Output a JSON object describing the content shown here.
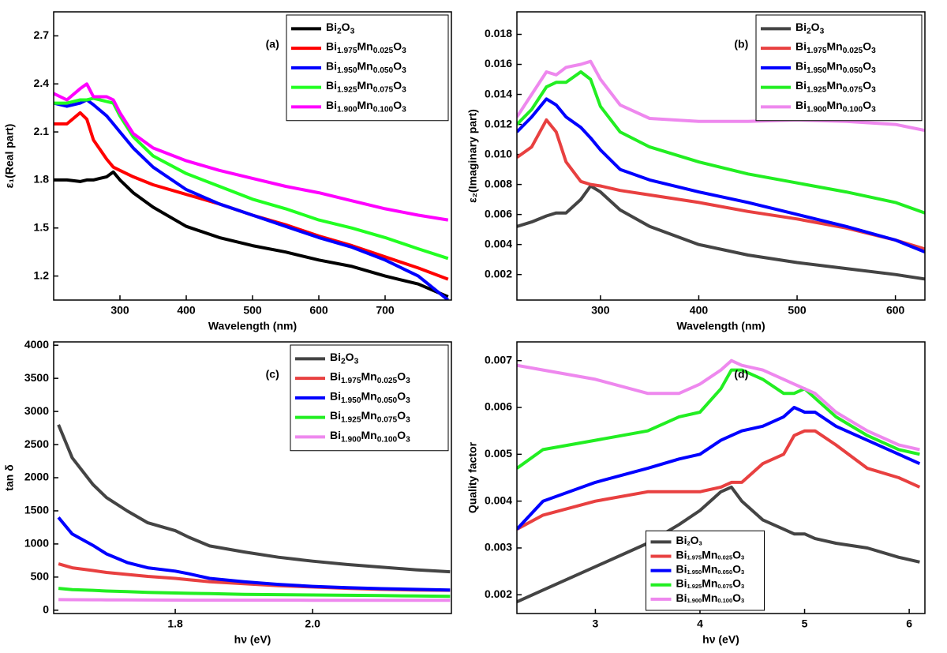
{
  "chart_data": [
    {
      "type": "line",
      "panel_label": "(a)",
      "x_label": "Wavelength (nm)",
      "y_label": "ε₁(Real part)",
      "x": [
        200,
        220,
        240,
        250,
        260,
        280,
        290,
        300,
        320,
        350,
        400,
        450,
        500,
        550,
        600,
        650,
        700,
        750,
        795
      ],
      "xlim": [
        200,
        800
      ],
      "xticks": [
        300,
        400,
        500,
        600,
        700
      ],
      "ylim": [
        1.05,
        2.85
      ],
      "yticks": [
        1.2,
        1.5,
        1.8,
        2.1,
        2.4,
        2.7
      ],
      "legend": "upper right",
      "series": [
        {
          "name": "Bi2O3",
          "color": "#000000",
          "values": [
            1.8,
            1.8,
            1.79,
            1.8,
            1.8,
            1.82,
            1.85,
            1.8,
            1.72,
            1.63,
            1.51,
            1.44,
            1.39,
            1.35,
            1.3,
            1.26,
            1.2,
            1.15,
            1.07
          ]
        },
        {
          "name": "Bi1.975Mn0.025O3",
          "color": "#ff0000",
          "values": [
            2.15,
            2.15,
            2.22,
            2.18,
            2.05,
            1.93,
            1.88,
            1.86,
            1.82,
            1.77,
            1.71,
            1.65,
            1.58,
            1.52,
            1.45,
            1.39,
            1.32,
            1.25,
            1.18
          ]
        },
        {
          "name": "Bi1.950Mn0.050O3",
          "color": "#0000ff",
          "values": [
            2.28,
            2.26,
            2.28,
            2.3,
            2.27,
            2.2,
            2.15,
            2.1,
            2.0,
            1.88,
            1.74,
            1.65,
            1.58,
            1.51,
            1.44,
            1.38,
            1.3,
            1.2,
            1.05
          ]
        },
        {
          "name": "Bi1.925Mn0.075O3",
          "color": "#22ff22",
          "values": [
            2.28,
            2.28,
            2.3,
            2.3,
            2.31,
            2.29,
            2.28,
            2.2,
            2.07,
            1.95,
            1.84,
            1.76,
            1.68,
            1.62,
            1.55,
            1.5,
            1.44,
            1.37,
            1.31
          ]
        },
        {
          "name": "Bi1.900Mn0.100O3",
          "color": "#ff00ff",
          "values": [
            2.34,
            2.3,
            2.37,
            2.4,
            2.32,
            2.32,
            2.3,
            2.22,
            2.09,
            2.0,
            1.92,
            1.86,
            1.81,
            1.76,
            1.72,
            1.67,
            1.62,
            1.58,
            1.55
          ]
        }
      ]
    },
    {
      "type": "line",
      "panel_label": "(b)",
      "x_label": "Wavelength (nm)",
      "y_label": "ε₂(Imaginary part)",
      "x": [
        215,
        230,
        245,
        255,
        265,
        280,
        290,
        300,
        320,
        350,
        400,
        450,
        500,
        550,
        600,
        630
      ],
      "xlim": [
        215,
        630
      ],
      "xticks": [
        300,
        400,
        500,
        600
      ],
      "ylim": [
        0.0003,
        0.0195
      ],
      "yticks": [
        0.002,
        0.004,
        0.006,
        0.008,
        {
          "value": 0.01,
          "label": "0.010"
        },
        0.012,
        0.014,
        0.016,
        0.018
      ],
      "legend": "upper right",
      "series": [
        {
          "name": "Bi2O3",
          "color": "#444444",
          "values": [
            0.0052,
            0.0055,
            0.0059,
            0.0061,
            0.0061,
            0.007,
            0.0079,
            0.0075,
            0.0063,
            0.0052,
            0.004,
            0.0033,
            0.0028,
            0.0024,
            0.002,
            0.0017
          ]
        },
        {
          "name": "Bi1.975Mn0.025O3",
          "color": "#e84040",
          "values": [
            0.0098,
            0.0105,
            0.0123,
            0.0115,
            0.0095,
            0.0082,
            0.008,
            0.0079,
            0.0076,
            0.0073,
            0.0068,
            0.0062,
            0.0057,
            0.0051,
            0.0043,
            0.0037
          ]
        },
        {
          "name": "Bi1.950Mn0.050O3",
          "color": "#0000ff",
          "values": [
            0.0115,
            0.0125,
            0.0137,
            0.0133,
            0.0125,
            0.0118,
            0.0111,
            0.0103,
            0.009,
            0.0083,
            0.0075,
            0.0068,
            0.006,
            0.0052,
            0.0043,
            0.0035
          ]
        },
        {
          "name": "Bi1.925Mn0.075O3",
          "color": "#22ee22",
          "values": [
            0.012,
            0.013,
            0.0145,
            0.0148,
            0.0148,
            0.0155,
            0.015,
            0.0132,
            0.0115,
            0.0105,
            0.0095,
            0.0087,
            0.0081,
            0.0075,
            0.0068,
            0.0061
          ]
        },
        {
          "name": "Bi1.900Mn0.100O3",
          "color": "#ee88ee",
          "values": [
            0.0125,
            0.014,
            0.0155,
            0.0153,
            0.0158,
            0.016,
            0.0162,
            0.015,
            0.0133,
            0.0124,
            0.0122,
            0.0122,
            0.0123,
            0.0122,
            0.012,
            0.0116
          ]
        }
      ]
    },
    {
      "type": "line",
      "panel_label": "(c)",
      "x_label": "hν (eV)",
      "y_label": "tan δ",
      "x": [
        1.63,
        1.65,
        1.68,
        1.7,
        1.73,
        1.76,
        1.8,
        1.82,
        1.85,
        1.9,
        1.95,
        2.0,
        2.05,
        2.1,
        2.15,
        2.2
      ],
      "xlim": [
        1.623,
        2.202
      ],
      "xticks": [
        1.8,
        {
          "value": 2,
          "label": "2.0"
        }
      ],
      "ylim": [
        -50,
        4050
      ],
      "yticks": [
        0,
        500,
        1000,
        1500,
        2000,
        2500,
        3000,
        3500,
        4000
      ],
      "legend": "upper right",
      "series": [
        {
          "name": "Bi2O3",
          "color": "#444444",
          "values": [
            2800,
            2300,
            1900,
            1700,
            1500,
            1320,
            1200,
            1100,
            970,
            880,
            800,
            740,
            690,
            650,
            610,
            580
          ]
        },
        {
          "name": "Bi1.975Mn0.025O3",
          "color": "#e84040",
          "values": [
            700,
            640,
            600,
            570,
            540,
            510,
            480,
            460,
            430,
            400,
            370,
            350,
            330,
            315,
            305,
            300
          ]
        },
        {
          "name": "Bi1.950Mn0.050O3",
          "color": "#0000ff",
          "values": [
            1400,
            1150,
            980,
            850,
            720,
            640,
            590,
            550,
            480,
            430,
            390,
            360,
            340,
            325,
            315,
            305
          ]
        },
        {
          "name": "Bi1.925Mn0.075O3",
          "color": "#22ee22",
          "values": [
            330,
            310,
            300,
            290,
            280,
            270,
            260,
            255,
            250,
            240,
            235,
            230,
            225,
            220,
            215,
            210
          ]
        },
        {
          "name": "Bi1.900Mn0.100O3",
          "color": "#ee88ee",
          "values": [
            160,
            158,
            157,
            156,
            155,
            154,
            153,
            152,
            152,
            151,
            151,
            150,
            150,
            150,
            150,
            150
          ]
        }
      ]
    },
    {
      "type": "line",
      "panel_label": "(d)",
      "x_label": "hν (eV)",
      "y_label": "Quality factor",
      "x": [
        2.25,
        2.5,
        3.0,
        3.5,
        3.8,
        4.0,
        4.2,
        4.3,
        4.4,
        4.6,
        4.8,
        4.9,
        5.0,
        5.1,
        5.3,
        5.6,
        5.9,
        6.1
      ],
      "xlim": [
        2.25,
        6.15
      ],
      "xticks": [
        3,
        4,
        5,
        6
      ],
      "ylim": [
        0.0016,
        0.0074
      ],
      "yticks": [
        0.002,
        0.003,
        0.004,
        0.005,
        0.006,
        0.007
      ],
      "legend": "lower center",
      "series": [
        {
          "name": "Bi2O3",
          "color": "#444444",
          "values": [
            0.00185,
            0.0021,
            0.0026,
            0.0031,
            0.0035,
            0.0038,
            0.0042,
            0.0043,
            0.004,
            0.0036,
            0.0034,
            0.0033,
            0.0033,
            0.0032,
            0.0031,
            0.003,
            0.0028,
            0.0027
          ]
        },
        {
          "name": "Bi1.975Mn0.025O3",
          "color": "#e84040",
          "values": [
            0.0034,
            0.0037,
            0.004,
            0.0042,
            0.0042,
            0.0042,
            0.0043,
            0.0044,
            0.0044,
            0.0048,
            0.005,
            0.0054,
            0.0055,
            0.0055,
            0.0052,
            0.0047,
            0.0045,
            0.0043
          ]
        },
        {
          "name": "Bi1.950Mn0.050O3",
          "color": "#0000ff",
          "values": [
            0.0034,
            0.004,
            0.0044,
            0.0047,
            0.0049,
            0.005,
            0.0053,
            0.0054,
            0.0055,
            0.0056,
            0.0058,
            0.006,
            0.0059,
            0.0059,
            0.0056,
            0.0053,
            0.005,
            0.0048
          ]
        },
        {
          "name": "Bi1.925Mn0.075O3",
          "color": "#22ee22",
          "values": [
            0.0047,
            0.0051,
            0.0053,
            0.0055,
            0.0058,
            0.0059,
            0.0064,
            0.0068,
            0.0068,
            0.0066,
            0.0063,
            0.0063,
            0.0064,
            0.0062,
            0.0058,
            0.0054,
            0.0051,
            0.005
          ]
        },
        {
          "name": "Bi1.900Mn0.100O3",
          "color": "#ee88ee",
          "values": [
            0.0069,
            0.0068,
            0.0066,
            0.0063,
            0.0063,
            0.0065,
            0.0068,
            0.007,
            0.0069,
            0.0068,
            0.0066,
            0.0065,
            0.0064,
            0.0063,
            0.0059,
            0.0055,
            0.0052,
            0.0051
          ]
        }
      ]
    }
  ]
}
